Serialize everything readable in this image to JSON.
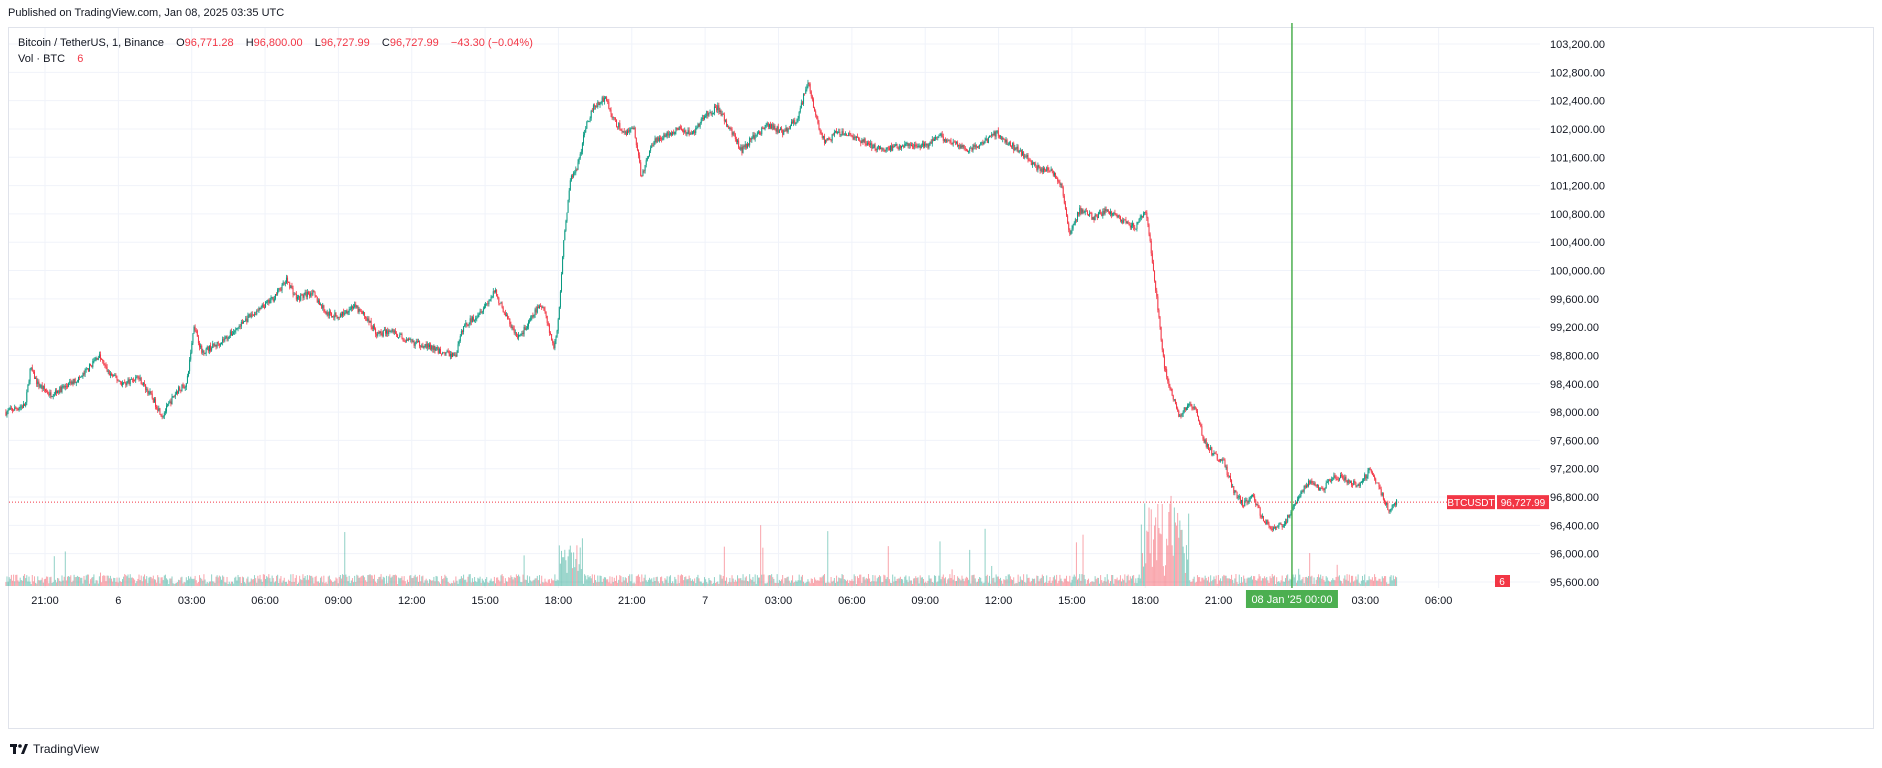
{
  "header": {
    "published": "Published on TradingView.com, Jan 08, 2025 03:35 UTC"
  },
  "legend": {
    "symbol": "Bitcoin / TetherUS, 1, Binance",
    "o_label": "O",
    "o_value": "96,771.28",
    "h_label": "H",
    "h_value": "96,800.00",
    "l_label": "L",
    "l_value": "96,727.99",
    "c_label": "C",
    "c_value": "96,727.99",
    "change": "−43.30 (−0.04%)",
    "vol_label": "Vol · BTC",
    "vol_value": "6"
  },
  "footer": {
    "brand": "TradingView",
    "logo_icon": "tradingview-logo-icon"
  },
  "colors": {
    "up": "#089981",
    "down": "#f23645",
    "crosshair": "#4caf50",
    "grid": "#f0f3fa",
    "text": "#131722"
  },
  "chart_data": {
    "type": "candlestick",
    "interval": "1 minute",
    "y_ticks": [
      "103,200.00",
      "102,800.00",
      "102,400.00",
      "102,000.00",
      "101,600.00",
      "101,200.00",
      "100,800.00",
      "100,400.00",
      "100,000.00",
      "99,600.00",
      "99,200.00",
      "98,800.00",
      "98,400.00",
      "98,000.00",
      "97,600.00",
      "97,200.00",
      "96,800.00",
      "96,400.00",
      "96,000.00",
      "95,600.00"
    ],
    "ylim": [
      95600,
      103200
    ],
    "x_ticks": [
      "21:00",
      "6",
      "03:00",
      "06:00",
      "09:00",
      "12:00",
      "15:00",
      "18:00",
      "21:00",
      "7",
      "03:00",
      "06:00",
      "09:00",
      "12:00",
      "15:00",
      "18:00",
      "21:00",
      "00:00",
      "03:00",
      "06:00"
    ],
    "x_tick_hours": [
      0,
      3,
      6,
      9,
      12,
      15,
      18,
      21,
      24,
      27,
      30,
      33,
      36,
      39,
      42,
      45,
      48,
      51,
      54,
      57
    ],
    "data_start_hour": -1.6,
    "data_end_hour": 55.3,
    "price_path": [
      [
        -1.6,
        98000
      ],
      [
        -1.2,
        98050
      ],
      [
        -0.8,
        98100
      ],
      [
        -0.6,
        98620
      ],
      [
        -0.3,
        98400
      ],
      [
        0.2,
        98250
      ],
      [
        0.8,
        98350
      ],
      [
        1.5,
        98500
      ],
      [
        2.2,
        98800
      ],
      [
        2.6,
        98550
      ],
      [
        3.2,
        98400
      ],
      [
        3.8,
        98500
      ],
      [
        4.3,
        98250
      ],
      [
        4.8,
        97950
      ],
      [
        5.4,
        98300
      ],
      [
        5.8,
        98400
      ],
      [
        6.1,
        99250
      ],
      [
        6.4,
        98850
      ],
      [
        7.0,
        98950
      ],
      [
        7.6,
        99100
      ],
      [
        8.2,
        99300
      ],
      [
        8.8,
        99450
      ],
      [
        9.3,
        99600
      ],
      [
        9.9,
        99870
      ],
      [
        10.3,
        99600
      ],
      [
        10.9,
        99700
      ],
      [
        11.5,
        99400
      ],
      [
        12.0,
        99350
      ],
      [
        12.6,
        99500
      ],
      [
        13.1,
        99350
      ],
      [
        13.6,
        99100
      ],
      [
        14.2,
        99150
      ],
      [
        14.8,
        99000
      ],
      [
        15.5,
        98950
      ],
      [
        16.2,
        98850
      ],
      [
        16.8,
        98800
      ],
      [
        17.1,
        99200
      ],
      [
        17.6,
        99350
      ],
      [
        18.1,
        99550
      ],
      [
        18.4,
        99700
      ],
      [
        18.8,
        99400
      ],
      [
        19.3,
        99050
      ],
      [
        19.7,
        99200
      ],
      [
        20.1,
        99450
      ],
      [
        20.4,
        99500
      ],
      [
        20.8,
        98900
      ],
      [
        21.0,
        99300
      ],
      [
        21.2,
        100400
      ],
      [
        21.5,
        101300
      ],
      [
        21.8,
        101500
      ],
      [
        22.1,
        102000
      ],
      [
        22.4,
        102300
      ],
      [
        22.9,
        102450
      ],
      [
        23.3,
        102100
      ],
      [
        23.7,
        101950
      ],
      [
        24.1,
        102000
      ],
      [
        24.4,
        101300
      ],
      [
        24.8,
        101800
      ],
      [
        25.3,
        101900
      ],
      [
        25.9,
        102000
      ],
      [
        26.5,
        101950
      ],
      [
        27.0,
        102200
      ],
      [
        27.5,
        102300
      ],
      [
        28.0,
        102000
      ],
      [
        28.5,
        101700
      ],
      [
        29.0,
        101900
      ],
      [
        29.6,
        102050
      ],
      [
        30.2,
        101950
      ],
      [
        30.8,
        102150
      ],
      [
        31.2,
        102700
      ],
      [
        31.5,
        102200
      ],
      [
        31.9,
        101800
      ],
      [
        32.4,
        101950
      ],
      [
        33.0,
        101900
      ],
      [
        33.6,
        101800
      ],
      [
        34.2,
        101700
      ],
      [
        34.8,
        101750
      ],
      [
        35.4,
        101800
      ],
      [
        36.0,
        101750
      ],
      [
        36.6,
        101900
      ],
      [
        37.2,
        101800
      ],
      [
        37.8,
        101700
      ],
      [
        38.4,
        101800
      ],
      [
        38.9,
        101950
      ],
      [
        39.4,
        101800
      ],
      [
        40.0,
        101650
      ],
      [
        40.6,
        101450
      ],
      [
        41.2,
        101400
      ],
      [
        41.6,
        101200
      ],
      [
        41.9,
        100500
      ],
      [
        42.3,
        100850
      ],
      [
        42.9,
        100750
      ],
      [
        43.5,
        100850
      ],
      [
        44.1,
        100700
      ],
      [
        44.6,
        100600
      ],
      [
        45.0,
        100850
      ],
      [
        45.2,
        100400
      ],
      [
        45.5,
        99500
      ],
      [
        45.8,
        98600
      ],
      [
        46.1,
        98250
      ],
      [
        46.4,
        97900
      ],
      [
        46.8,
        98150
      ],
      [
        47.1,
        98000
      ],
      [
        47.4,
        97600
      ],
      [
        47.8,
        97400
      ],
      [
        48.2,
        97300
      ],
      [
        48.6,
        96900
      ],
      [
        49.0,
        96700
      ],
      [
        49.4,
        96800
      ],
      [
        49.8,
        96500
      ],
      [
        50.2,
        96350
      ],
      [
        50.6,
        96400
      ],
      [
        51.0,
        96600
      ],
      [
        51.4,
        96900
      ],
      [
        51.8,
        97050
      ],
      [
        52.2,
        96900
      ],
      [
        52.7,
        97100
      ],
      [
        53.2,
        97050
      ],
      [
        53.7,
        96950
      ],
      [
        54.2,
        97200
      ],
      [
        54.6,
        96900
      ],
      [
        55.0,
        96600
      ],
      [
        55.3,
        96728
      ]
    ],
    "last_price_label": "BTCUSDT",
    "last_price": "96,727.99",
    "volume_last": "6",
    "crosshair_time_label": "08 Jan '25    00:00",
    "crosshair_hour": 51
  }
}
